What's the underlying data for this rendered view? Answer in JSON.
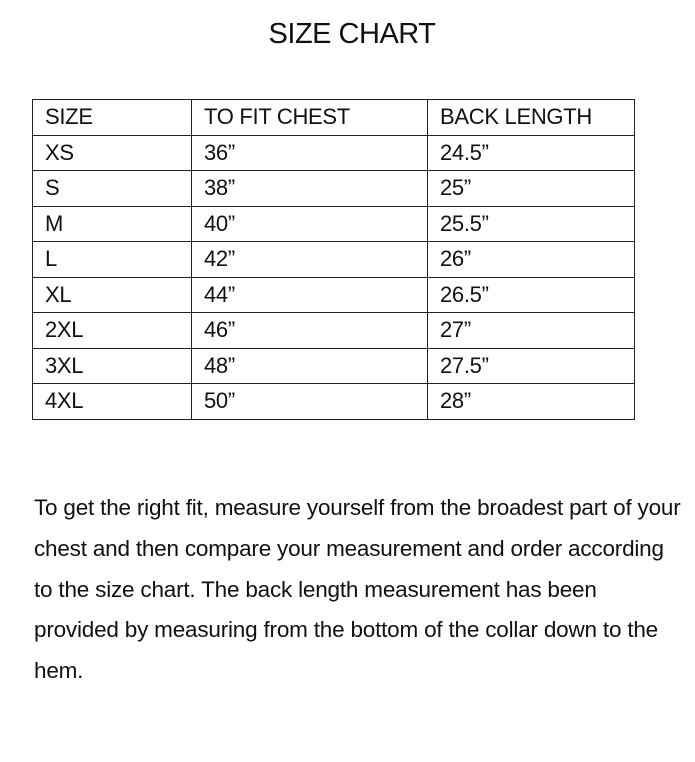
{
  "title": "SIZE CHART",
  "table": {
    "headers": [
      "SIZE",
      "TO FIT CHEST",
      "BACK LENGTH"
    ],
    "rows": [
      [
        "XS",
        "36”",
        "24.5”"
      ],
      [
        "S",
        "38”",
        "25”"
      ],
      [
        "M",
        "40”",
        "25.5”"
      ],
      [
        "L",
        "42”",
        "26”"
      ],
      [
        "XL",
        "44”",
        "26.5”"
      ],
      [
        "2XL",
        "46”",
        "27”"
      ],
      [
        "3XL",
        "48”",
        "27.5”"
      ],
      [
        "4XL",
        "50”",
        "28”"
      ]
    ]
  },
  "note": "To get the right fit, measure yourself from the broadest part of your chest and then compare your measurement and order according to the size chart. The back length measurement has been provided by measuring from the bottom of the collar down to the hem."
}
